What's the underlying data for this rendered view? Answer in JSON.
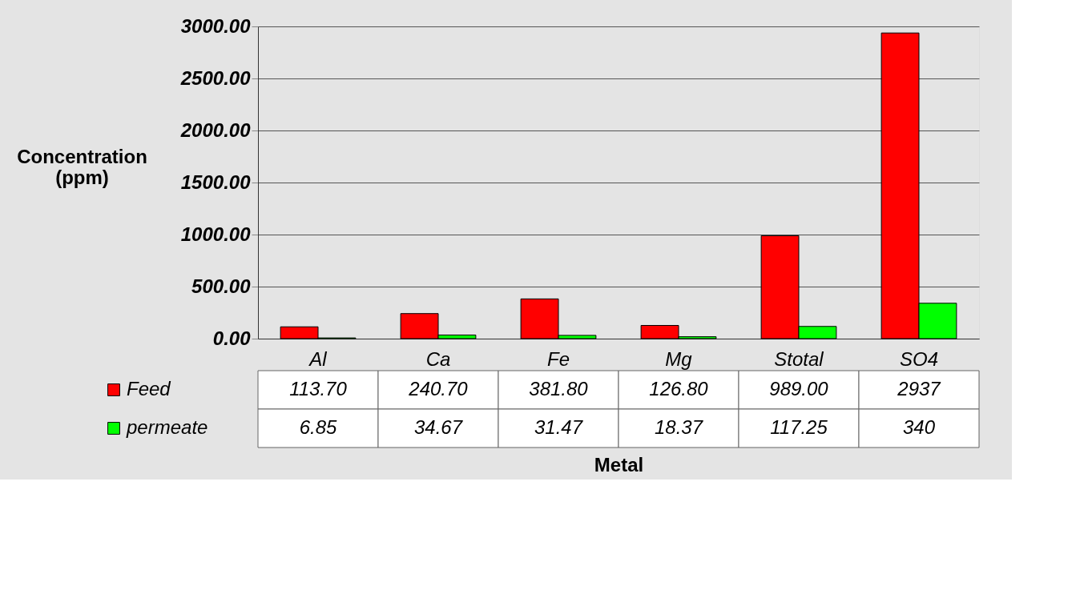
{
  "chart_data": {
    "type": "bar",
    "xlabel": "Metal",
    "ylabel": "Concentration (ppm)",
    "categories": [
      "Al",
      "Ca",
      "Fe",
      "Mg",
      "Stotal",
      "SO4"
    ],
    "series": [
      {
        "name": "Feed",
        "color": "#ff0000",
        "values": [
          113.7,
          240.7,
          381.8,
          126.8,
          989.0,
          2937
        ],
        "value_labels": [
          "113.70",
          "240.70",
          "381.80",
          "126.80",
          "989.00",
          "2937"
        ]
      },
      {
        "name": "permeate",
        "color": "#00ff00",
        "values": [
          6.85,
          34.67,
          31.47,
          18.37,
          117.25,
          340
        ],
        "value_labels": [
          "6.85",
          "34.67",
          "31.47",
          "18.37",
          "117.25",
          "340"
        ]
      }
    ],
    "ylim": [
      0,
      3000
    ],
    "yticks": [
      {
        "value": 0,
        "label": "0.00"
      },
      {
        "value": 500,
        "label": "500.00"
      },
      {
        "value": 1000,
        "label": "1000.00"
      },
      {
        "value": 1500,
        "label": "1500.00"
      },
      {
        "value": 2000,
        "label": "2000.00"
      },
      {
        "value": 2500,
        "label": "2500.00"
      },
      {
        "value": 3000,
        "label": "3000.00"
      }
    ],
    "grid": "y",
    "legend": "bottom left"
  }
}
